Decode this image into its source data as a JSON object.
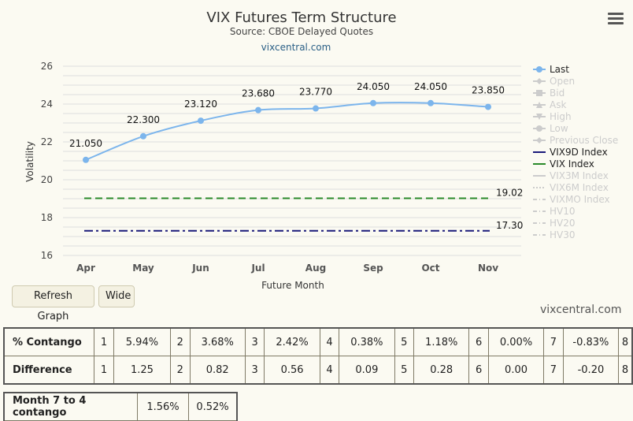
{
  "chart_data": {
    "type": "line",
    "title": "VIX Futures Term Structure",
    "subtitle": "Source: CBOE Delayed Quotes",
    "site_label": "vixcentral.com",
    "xlabel": "Future Month",
    "ylabel": "Volatility",
    "ylim": [
      16,
      26
    ],
    "yticks": [
      "16",
      "18",
      "20",
      "22",
      "24",
      "26"
    ],
    "categories": [
      "Apr",
      "May",
      "Jun",
      "Jul",
      "Aug",
      "Sep",
      "Oct",
      "Nov"
    ],
    "grid": true,
    "legend_position": "right",
    "series": [
      {
        "name": "Last",
        "color": "#7cb5ec",
        "values": [
          21.05,
          22.3,
          23.12,
          23.68,
          23.77,
          24.05,
          24.05,
          23.85
        ],
        "labels": [
          "21.050",
          "22.300",
          "23.120",
          "23.680",
          "23.770",
          "24.050",
          "24.050",
          "23.850"
        ]
      },
      {
        "name": "VIX9D Index",
        "color": "#1a1a7a",
        "value": 17.3,
        "label": "17.30"
      },
      {
        "name": "VIX Index",
        "color": "#2a8a2a",
        "value": 19.02,
        "label": "19.02"
      }
    ],
    "legend": [
      {
        "name": "Last",
        "active": true,
        "marker": "circle-line"
      },
      {
        "name": "Open",
        "active": false,
        "marker": "diamond-line"
      },
      {
        "name": "Bid",
        "active": false,
        "marker": "square-line"
      },
      {
        "name": "Ask",
        "active": false,
        "marker": "triangle-line"
      },
      {
        "name": "High",
        "active": false,
        "marker": "triangle-down-line"
      },
      {
        "name": "Low",
        "active": false,
        "marker": "circle-line"
      },
      {
        "name": "Previous Close",
        "active": false,
        "marker": "diamond-line"
      },
      {
        "name": "VIX9D Index",
        "active": true,
        "marker": "line",
        "color": "#1a1a7a"
      },
      {
        "name": "VIX Index",
        "active": true,
        "marker": "line",
        "color": "#2a8a2a"
      },
      {
        "name": "VIX3M Index",
        "active": false,
        "marker": "line"
      },
      {
        "name": "VIX6M Index",
        "active": false,
        "marker": "dotted"
      },
      {
        "name": "VIXMO Index",
        "active": false,
        "marker": "dashdot"
      },
      {
        "name": "HV10",
        "active": false,
        "marker": "dashdot"
      },
      {
        "name": "HV20",
        "active": false,
        "marker": "dashdot"
      },
      {
        "name": "HV30",
        "active": false,
        "marker": "dashdot"
      }
    ]
  },
  "buttons": {
    "refresh_label": "Refresh Graph",
    "wide_label": "Wide"
  },
  "credit": "vixcentral.com",
  "stats_table": {
    "rows": [
      {
        "label": "% Contango",
        "cells": [
          {
            "n": "1",
            "v": "5.94%"
          },
          {
            "n": "2",
            "v": "3.68%"
          },
          {
            "n": "3",
            "v": "2.42%"
          },
          {
            "n": "4",
            "v": "0.38%"
          },
          {
            "n": "5",
            "v": "1.18%"
          },
          {
            "n": "6",
            "v": "0.00%"
          },
          {
            "n": "7",
            "v": "-0.83%"
          },
          {
            "n": "8",
            "v": ""
          }
        ]
      },
      {
        "label": "Difference",
        "cells": [
          {
            "n": "1",
            "v": "1.25"
          },
          {
            "n": "2",
            "v": "0.82"
          },
          {
            "n": "3",
            "v": "0.56"
          },
          {
            "n": "4",
            "v": "0.09"
          },
          {
            "n": "5",
            "v": "0.28"
          },
          {
            "n": "6",
            "v": "0.00"
          },
          {
            "n": "7",
            "v": "-0.20"
          },
          {
            "n": "8",
            "v": ""
          }
        ]
      }
    ]
  },
  "month_table": {
    "label": "Month 7 to 4 contango",
    "values": [
      "1.56%",
      "0.52%"
    ]
  },
  "colors": {
    "background": "#fbfaf2",
    "last_series": "#7cb5ec",
    "legend_inactive": "#cccccc",
    "grid": "#e0e0e0"
  }
}
